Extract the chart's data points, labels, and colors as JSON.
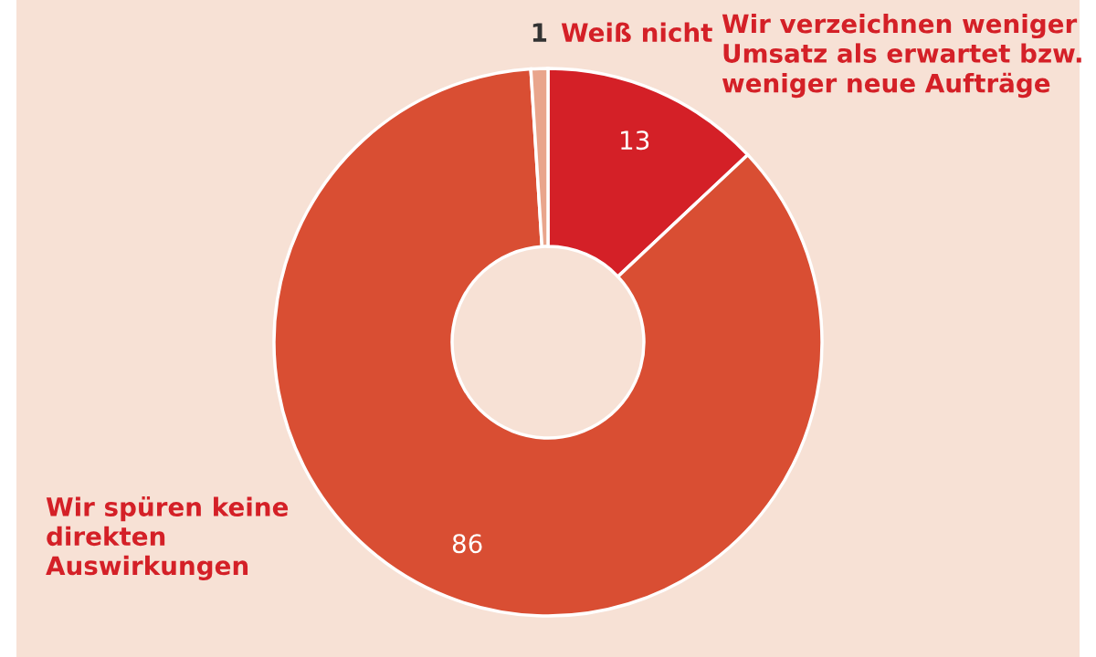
{
  "chart_data": {
    "type": "donut",
    "categories": [
      "Wir verzeichnen weniger Umsatz als erwartet bzw. weniger neue Aufträge",
      "Wir spüren keine direkten Auswirkungen",
      "Weiß nicht"
    ],
    "values": [
      13,
      86,
      1
    ],
    "colors": [
      "#d42027",
      "#d94e33",
      "#e9a58c"
    ],
    "data_labels": true
  }
}
